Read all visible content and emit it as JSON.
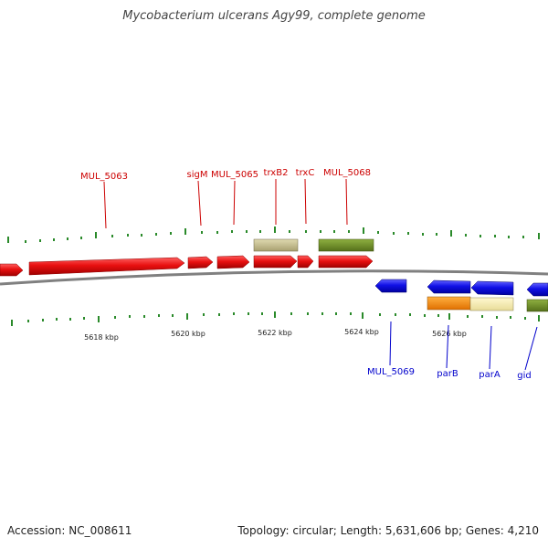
{
  "title": "Mycobacterium ulcerans Agy99, complete genome",
  "footer": {
    "accession": "Accession: NC_008611",
    "summary": "Topology: circular; Length: 5,631,606 bp; Genes: 4,210"
  },
  "colors": {
    "forward_gene": "#e81010",
    "reverse_gene": "#1010e6",
    "label_forward": "#cc0000",
    "label_reverse": "#0000cc",
    "tick": "#2a8a2a",
    "backbone": "#888888",
    "feature_khaki": "#c8c08a",
    "feature_olive": "#6f8f2a",
    "feature_orange": "#f08a10",
    "feature_cream": "#f0e8b0"
  },
  "scale_labels": [
    "5618 kbp",
    "5620 kbp",
    "5622 kbp",
    "5624 kbp",
    "5626 kbp"
  ],
  "forward_labels": [
    "MUL_5063",
    "sigM",
    "MUL_5065",
    "trxB2",
    "trxC",
    "MUL_5068"
  ],
  "reverse_labels": [
    "MUL_5069",
    "parB",
    "parA",
    "gid"
  ]
}
